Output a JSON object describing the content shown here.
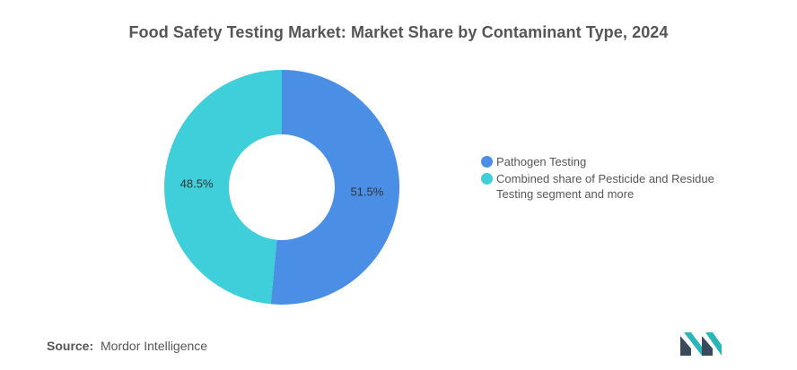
{
  "title": "Food Safety Testing Market: Market Share by Contaminant Type, 2024",
  "source": {
    "label": "Source:",
    "text": "Mordor Intelligence"
  },
  "colors": {
    "pathogen": "#4a8fe5",
    "pesticide": "#3ecfda",
    "text": "#555555",
    "logo_dark": "#3a4a5c",
    "logo_teal": "#2bb5b8"
  },
  "chart_data": {
    "type": "pie",
    "donut": true,
    "title": "Food Safety Testing Market: Market Share by Contaminant Type, 2024",
    "legend_position": "right",
    "series": [
      {
        "name": "Pathogen Testing",
        "value": 51.5,
        "label": "51.5%",
        "color": "#4a8fe5"
      },
      {
        "name": "Combined share of Pesticide and Residue Testing segment and more",
        "value": 48.5,
        "label": "48.5%",
        "color": "#3ecfda"
      }
    ]
  }
}
